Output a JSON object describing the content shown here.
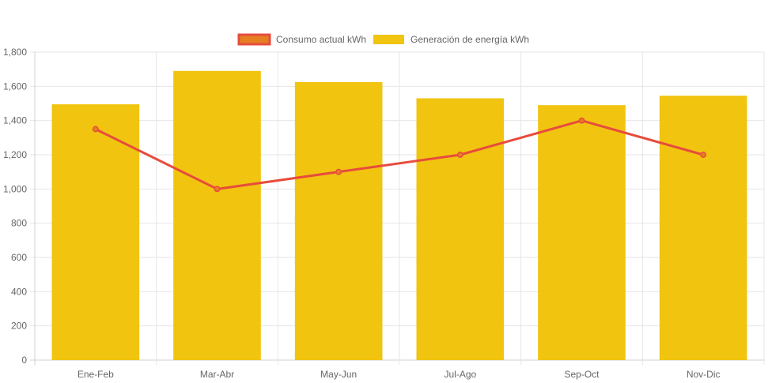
{
  "chart_data": {
    "type": "bar",
    "categories": [
      "Ene-Feb",
      "Mar-Abr",
      "May-Jun",
      "Jul-Ago",
      "Sep-Oct",
      "Nov-Dic"
    ],
    "series": [
      {
        "name": "Consumo actual kWh",
        "type": "line",
        "values": [
          1350,
          1000,
          1100,
          1200,
          1400,
          1200
        ],
        "color": "#e74c3c",
        "legend_fill": "#e67e22"
      },
      {
        "name": "Generación de energía kWh",
        "type": "bar",
        "values": [
          1495,
          1690,
          1625,
          1530,
          1490,
          1545
        ],
        "color": "#f1c40f"
      }
    ],
    "ylim": [
      0,
      1800
    ],
    "yticks": [
      "0",
      "200",
      "400",
      "600",
      "800",
      "1,000",
      "1,200",
      "1,400",
      "1,600",
      "1,800"
    ],
    "grid": true,
    "legend_position": "top-center"
  }
}
